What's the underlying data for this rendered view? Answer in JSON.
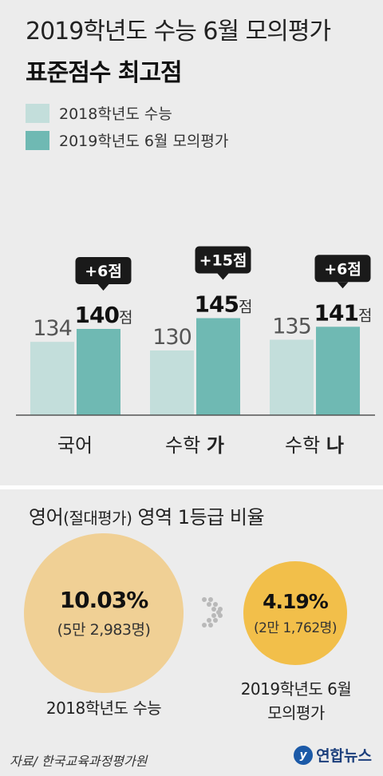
{
  "header": {
    "title": "2019학년도 수능 6월 모의평가",
    "subtitle": "표준점수 최고점"
  },
  "legend": [
    {
      "label": "2018학년도 수능",
      "color": "#c3dedb"
    },
    {
      "label": "2019학년도 6월 모의평가",
      "color": "#6fb9b3"
    }
  ],
  "chart_data": {
    "type": "bar",
    "title": "표준점수 최고점",
    "categories": [
      {
        "name": "국어",
        "bold": ""
      },
      {
        "name": "수학 ",
        "bold": "가"
      },
      {
        "name": "수학 ",
        "bold": "나"
      }
    ],
    "series": [
      {
        "name": "2018학년도 수능",
        "values": [
          134,
          130,
          135
        ],
        "color": "#c3dedb"
      },
      {
        "name": "2019학년도 6월 모의평가",
        "values": [
          140,
          145,
          141
        ],
        "color": "#6fb9b3"
      }
    ],
    "value_suffix": "점",
    "differences": [
      "+6점",
      "+15점",
      "+6점"
    ]
  },
  "english": {
    "title_main": "영어",
    "title_paren": "(절대평가)",
    "title_rest": " 영역 1등급 비율",
    "before": {
      "percent": "10.03%",
      "count": "(5만 2,983명)",
      "label": "2018학년도 수능",
      "ratio": 0.1003,
      "color": "#f0d095"
    },
    "after": {
      "percent": "4.19%",
      "count": "(2만 1,762명)",
      "label_line1": "2019학년도 6월",
      "label_line2": "모의평가",
      "ratio": 0.0419,
      "color": "#f2bf4a"
    }
  },
  "footer": {
    "source": "자료/ 한국교육과정평가원",
    "logo": "연합뉴스"
  }
}
